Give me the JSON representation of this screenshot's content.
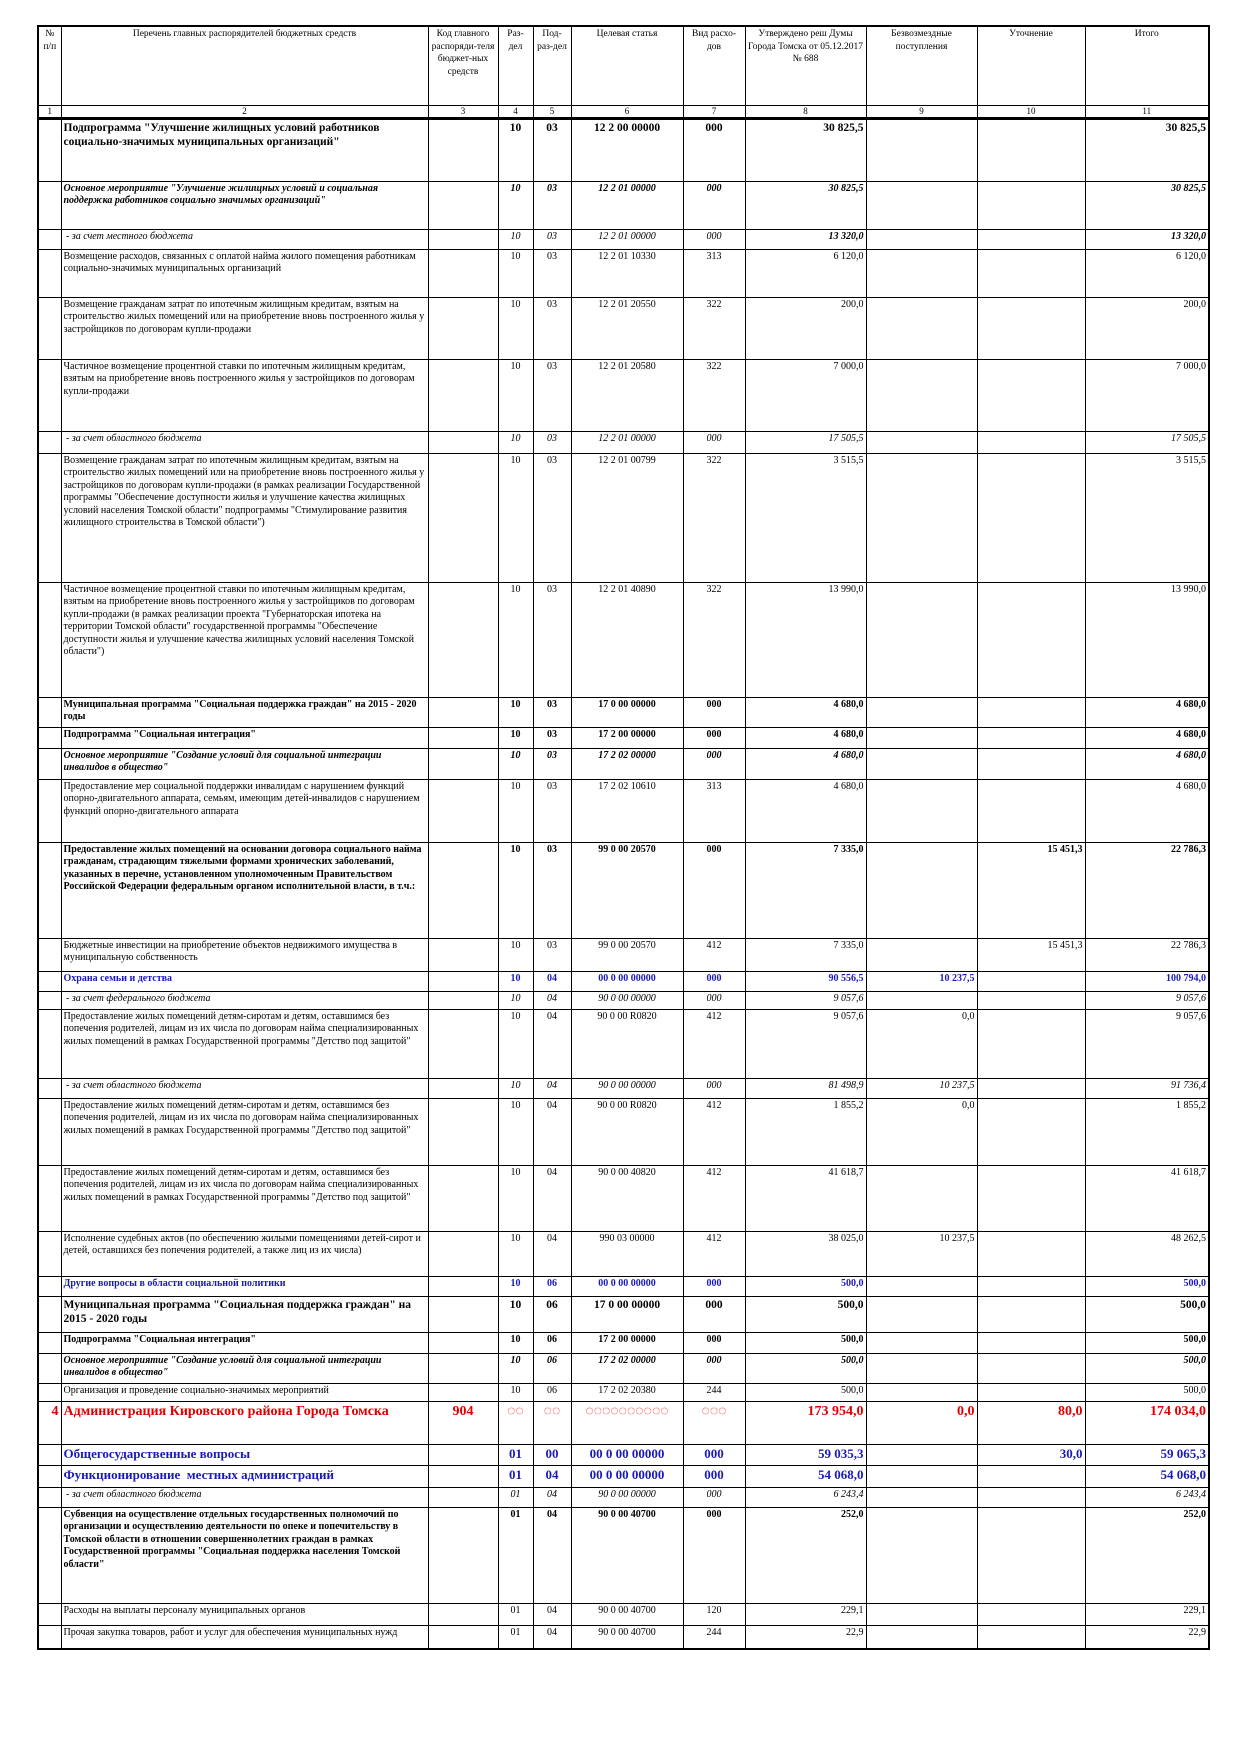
{
  "table": {
    "header": [
      "№ п/п",
      "Перечень главных распорядителей бюджетных средств",
      "Код главного распоряди-теля бюджет-ных средств",
      "Раз-дел",
      "Под-раз-дел",
      "Целевая статья",
      "Вид расхо-дов",
      "Утверждено реш Думы Города Томска от 05.12.2017 № 688",
      "Безвозмездные поступления",
      "Уточнение",
      "Итого"
    ],
    "numbers": [
      1,
      2,
      3,
      4,
      5,
      6,
      7,
      8,
      9,
      10,
      11
    ],
    "rows": [
      [
        null,
        "Подпрограмма \"Улучшение жилищных условий работников социально-значимых муниципальных организаций\"",
        null,
        "10",
        "03",
        "12 2 00 00000",
        "000",
        "30 825,5",
        null,
        null,
        "30 825,5"
      ],
      [
        null,
        "Основное мероприятие \"Улучшение жилищных условий и социальная поддержка работников социально значимых организаций\"",
        null,
        "10",
        "03",
        "12 2 01 00000",
        "000",
        "30 825,5",
        null,
        null,
        "30 825,5"
      ],
      [
        null,
        " - за счет местного бюджета",
        null,
        "10",
        "03",
        "12 2 01 00000",
        "000",
        "13 320,0",
        null,
        null,
        "13 320,0"
      ],
      [
        null,
        "Возмещение расходов, связанных с оплатой найма жилого помещения работникам социально-значимых муниципальных организаций",
        null,
        "10",
        "03",
        "12 2 01 10330",
        "313",
        "6 120,0",
        null,
        null,
        "6 120,0"
      ],
      [
        null,
        "Возмещение гражданам затрат по ипотечным жилищным кредитам, взятым на строительство жилых помещений или на приобретение вновь построенного жилья у застройщиков по договорам купли-продажи",
        null,
        "10",
        "03",
        "12 2 01 20550",
        "322",
        "200,0",
        null,
        null,
        "200,0"
      ],
      [
        null,
        "Частичное возмещение процентной ставки по ипотечным жилищным кредитам, взятым на приобретение вновь построенного жилья у застройщиков по договорам купли-продажи",
        null,
        "10",
        "03",
        "12 2 01 20580",
        "322",
        "7 000,0",
        null,
        null,
        "7 000,0"
      ],
      [
        null,
        " - за счет областного бюджета",
        null,
        "10",
        "03",
        "12 2 01 00000",
        "000",
        "17 505,5",
        null,
        null,
        "17 505,5"
      ],
      [
        null,
        "Возмещение гражданам затрат по ипотечным жилищным кредитам, взятым на строительство жилых помещений или на приобретение вновь построенного жилья у застройщиков по договорам купли-продажи (в рамках реализации Государственной программы \"Обеспечение доступности жилья и улучшение качества жилищных условий населения Томской области\" подпрограммы \"Стимулирование развития жилищного строительства в Томской области\")",
        null,
        "10",
        "03",
        "12 2 01 00799",
        "322",
        "3 515,5",
        null,
        null,
        "3 515,5"
      ],
      [
        null,
        "Частичное возмещение процентной ставки по ипотечным жилищным кредитам, взятым на приобретение вновь построенного жилья у застройщиков по договорам купли-продажи (в рамках реализации проекта \"Губернаторская ипотека на территории Томской области\" государственной программы \"Обеспечение доступности жилья и улучшение качества жилищных условий населения Томской области\")",
        null,
        "10",
        "03",
        "12 2 01 40890",
        "322",
        "13 990,0",
        null,
        null,
        "13 990,0"
      ],
      [
        null,
        "Муниципальная программа \"Социальная поддержка граждан\" на 2015 - 2020 годы",
        null,
        "10",
        "03",
        "17 0 00 00000",
        "000",
        "4 680,0",
        null,
        null,
        "4 680,0"
      ],
      [
        null,
        "Подпрограмма \"Социальная интеграция\"",
        null,
        "10",
        "03",
        "17 2 00 00000",
        "000",
        "4 680,0",
        null,
        null,
        "4 680,0"
      ],
      [
        null,
        "Основное мероприятие \"Создание условий для социальной интеграции инвалидов в общество\"",
        null,
        "10",
        "03",
        "17 2 02 00000",
        "000",
        "4 680,0",
        null,
        null,
        "4 680,0"
      ],
      [
        null,
        "Предоставление мер социальной поддержки инвалидам с нарушением функций опорно-двигательного аппарата, семьям, имеющим детей-инвалидов с нарушением функций опорно-двигательного аппарата",
        null,
        "10",
        "03",
        "17 2 02 10610",
        "313",
        "4 680,0",
        null,
        null,
        "4 680,0"
      ],
      [
        null,
        "Предоставление жилых помещений на основании договора социального найма гражданам, страдающим тяжелыми формами хронических заболеваний, указанных в перечне, установленном уполномоченным Правительством Российской Федерации федеральным органом исполнительной власти, в т.ч.:",
        null,
        "10",
        "03",
        "99 0 00 20570",
        "000",
        "7 335,0",
        null,
        "15 451,3",
        "22 786,3"
      ],
      [
        null,
        "Бюджетные инвестиции на приобретение объектов недвижимого имущества в муниципальную собственность",
        null,
        "10",
        "03",
        "99 0 00 20570",
        "412",
        "7 335,0",
        null,
        "15 451,3",
        "22 786,3"
      ],
      [
        null,
        "Охрана семьи и детства",
        null,
        "10",
        "04",
        "00 0 00 00000",
        "000",
        "90 556,5",
        "10 237,5",
        null,
        "100 794,0"
      ],
      [
        null,
        " - за счет федерального бюджета",
        null,
        "10",
        "04",
        "90 0 00 00000",
        "000",
        "9 057,6",
        null,
        null,
        "9 057,6"
      ],
      [
        null,
        "Предоставление жилых помещений детям-сиротам и детям, оставшимся без попечения родителей, лицам из их числа по договорам найма специализированных жилых помещений в рамках Государственной программы \"Детство под защитой\"",
        null,
        "10",
        "04",
        "90 0 00 R0820",
        "412",
        "9 057,6",
        "0,0",
        null,
        "9 057,6"
      ],
      [
        null,
        " - за счет областного бюджета",
        null,
        "10",
        "04",
        "90 0 00 00000",
        "000",
        "81 498,9",
        "10 237,5",
        null,
        "91 736,4"
      ],
      [
        null,
        "Предоставление жилых помещений детям-сиротам и детям, оставшимся без попечения родителей, лицам из их числа по договорам найма специализированных жилых помещений в рамках Государственной программы \"Детство под защитой\"",
        null,
        "10",
        "04",
        "90 0 00 R0820",
        "412",
        "1 855,2",
        "0,0",
        null,
        "1 855,2"
      ],
      [
        null,
        "Предоставление жилых помещений детям-сиротам и детям, оставшимся без попечения родителей, лицам из их числа по договорам найма специализированных жилых помещений в рамках Государственной программы \"Детство под защитой\"",
        null,
        "10",
        "04",
        "90 0 00 40820",
        "412",
        "41 618,7",
        null,
        null,
        "41 618,7"
      ],
      [
        null,
        "Исполнение судебных актов (по обеспечению жилыми помещениями детей-сирот и детей, оставшихся без попечения родителей, а также лиц из их числа)",
        null,
        "10",
        "04",
        "990 03 00000",
        "412",
        "38 025,0",
        "10 237,5",
        null,
        "48 262,5"
      ],
      [
        null,
        "Другие вопросы в области социальной политики",
        null,
        "10",
        "06",
        "00 0 00 00000",
        "000",
        "500,0",
        null,
        null,
        "500,0"
      ],
      [
        null,
        "Муниципальная программа \"Социальная поддержка граждан\" на 2015 - 2020 годы",
        null,
        "10",
        "06",
        "17 0 00 00000",
        "000",
        "500,0",
        null,
        null,
        "500,0"
      ],
      [
        null,
        "Подпрограмма \"Социальная интеграция\"",
        null,
        "10",
        "06",
        "17 2 00 00000",
        "000",
        "500,0",
        null,
        null,
        "500,0"
      ],
      [
        null,
        "Основное мероприятие \"Создание условий для социальной интеграции инвалидов в общество\"",
        null,
        "10",
        "06",
        "17 2 02 00000",
        "000",
        "500,0",
        null,
        null,
        "500,0"
      ],
      [
        null,
        "Организация и проведение социально-значимых мероприятий",
        null,
        "10",
        "06",
        "17 2 02 20380",
        "244",
        "500,0",
        null,
        null,
        "500,0"
      ],
      [
        "4",
        "Администрация Кировского района Города Томска",
        "904",
        "◌◌",
        "◌◌",
        "◌◌◌◌◌◌◌◌◌◌",
        "◌◌◌",
        "173 954,0",
        "0,0",
        "80,0",
        "174 034,0"
      ],
      [
        null,
        "Общегосударственные вопросы",
        null,
        "01",
        "00",
        "00 0 00 00000",
        "000",
        "59 035,3",
        null,
        "30,0",
        "59 065,3"
      ],
      [
        null,
        "Функционирование  местных администраций",
        null,
        "01",
        "04",
        "00 0 00 00000",
        "000",
        "54 068,0",
        null,
        null,
        "54 068,0"
      ],
      [
        null,
        " - за счет областного бюджета",
        null,
        "01",
        "04",
        "90 0 00 00000",
        "000",
        "6 243,4",
        null,
        null,
        "6 243,4"
      ],
      [
        null,
        "Субвенция на осуществление отдельных государственных полномочий по организации и осуществлению деятельности по опеке и попечительству в Томской области в отношении совершеннолетних граждан в рамках Государственной программы \"Социальная поддержка населения Томской области\"",
        null,
        "01",
        "04",
        "90 0 00 40700",
        "000",
        "252,0",
        null,
        null,
        "252,0"
      ],
      [
        null,
        "Расходы на выплаты персоналу муниципальных органов",
        null,
        "01",
        "04",
        "90 0 00 40700",
        "120",
        "229,1",
        null,
        null,
        "229,1"
      ],
      [
        null,
        "Прочая закупка товаров, работ и услуг для обеспечения муниципальных нужд",
        null,
        "01",
        "04",
        "90 0 00 40700",
        "244",
        "22,9",
        null,
        null,
        "22,9"
      ]
    ]
  }
}
